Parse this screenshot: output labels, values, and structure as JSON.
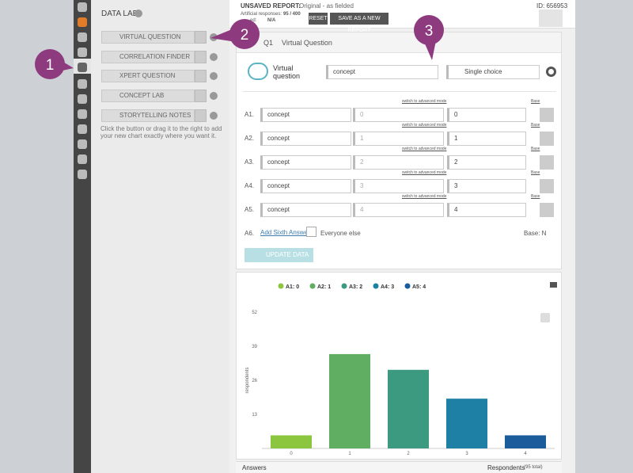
{
  "top_bar": {
    "status": "UNSAVED REPORT:",
    "report": "Original - as fielded",
    "id": "ID: 656953",
    "responses_label": "Artificial responses:",
    "responses": "95 / 400",
    "weighted_label": "ed:",
    "weighted": "N/A",
    "reset": "RESET",
    "save": "SAVE AS A NEW REPORT"
  },
  "sidebar": {
    "title": "DATA LAB",
    "items": [
      "VIRTUAL QUESTION",
      "CORRELATION FINDER",
      "XPERT QUESTION",
      "CONCEPT LAB",
      "STORYTELLING NOTES"
    ],
    "help": "Click the button or drag it to the right to add your new chart exactly where you want it."
  },
  "question": {
    "number": "Q1",
    "title": "Virtual Question",
    "type_label": "Virtual question",
    "source": "concept",
    "mode": "Single choice"
  },
  "answers": [
    {
      "label": "A1.",
      "source": "concept",
      "value": "0",
      "text": "0",
      "switch": "switch to advanced mode",
      "base": "Base"
    },
    {
      "label": "A2.",
      "source": "concept",
      "value": "1",
      "text": "1",
      "switch": "switch to advanced mode",
      "base": "Base"
    },
    {
      "label": "A3.",
      "source": "concept",
      "value": "2",
      "text": "2",
      "switch": "switch to advanced mode",
      "base": "Base"
    },
    {
      "label": "A4.",
      "source": "concept",
      "value": "3",
      "text": "3",
      "switch": "switch to advanced mode",
      "base": "Base"
    },
    {
      "label": "A5.",
      "source": "concept",
      "value": "4",
      "text": "4",
      "switch": "switch to advanced mode",
      "base": "Base"
    }
  ],
  "sixth": {
    "label": "A6.",
    "add": "Add Sixth Answer",
    "everyone": "Everyone else",
    "base": "Base: N"
  },
  "update": "UPDATE DATA",
  "chart_data": {
    "type": "bar",
    "categories": [
      "0",
      "1",
      "2",
      "3",
      "4"
    ],
    "values": [
      5,
      36,
      30,
      19,
      5
    ],
    "legend": [
      {
        "name": "A1: 0",
        "color": "#8cc63f"
      },
      {
        "name": "A2: 1",
        "color": "#5fae62"
      },
      {
        "name": "A3: 2",
        "color": "#3b9a80"
      },
      {
        "name": "A4: 3",
        "color": "#1f80a5"
      },
      {
        "name": "A5: 4",
        "color": "#1b5c9c"
      }
    ],
    "ylabel": "respondents",
    "ylim": [
      0,
      52
    ],
    "yticks": [
      13,
      26,
      39,
      52
    ],
    "grid": false
  },
  "footer": {
    "answers": "Answers",
    "respondents": "Respondents",
    "total": "(95 total)"
  },
  "annotations": [
    "1",
    "2",
    "3"
  ]
}
